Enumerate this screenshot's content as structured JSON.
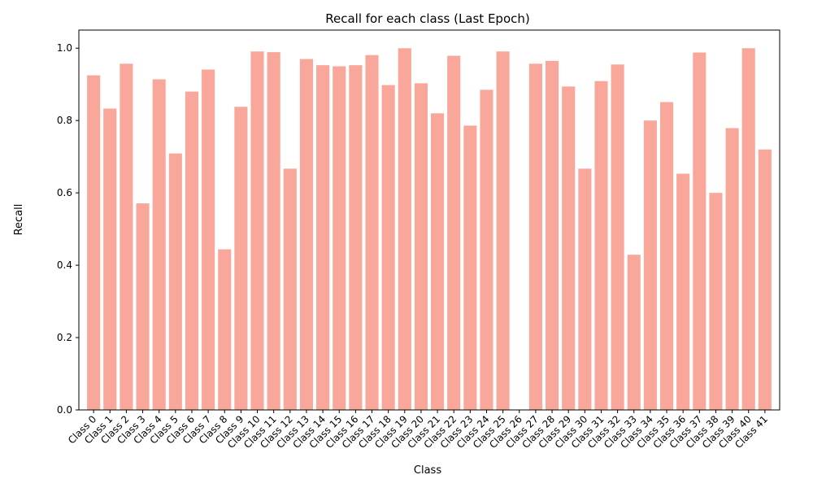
{
  "chart_data": {
    "type": "bar",
    "title": "Recall for each class (Last Epoch)",
    "xlabel": "Class",
    "ylabel": "Recall",
    "ylim": [
      0,
      1.05
    ],
    "yticks": [
      0.0,
      0.2,
      0.4,
      0.6,
      0.8,
      1.0
    ],
    "ytick_labels": [
      "0.0",
      "0.2",
      "0.4",
      "0.6",
      "0.8",
      "1.0"
    ],
    "grid": false,
    "bar_color": "#faa79b",
    "categories": [
      "Class 0",
      "Class 1",
      "Class 2",
      "Class 3",
      "Class 4",
      "Class 5",
      "Class 6",
      "Class 7",
      "Class 8",
      "Class 9",
      "Class 10",
      "Class 11",
      "Class 12",
      "Class 13",
      "Class 14",
      "Class 15",
      "Class 16",
      "Class 17",
      "Class 18",
      "Class 19",
      "Class 20",
      "Class 21",
      "Class 22",
      "Class 23",
      "Class 24",
      "Class 25",
      "Class 26",
      "Class 27",
      "Class 28",
      "Class 29",
      "Class 30",
      "Class 31",
      "Class 32",
      "Class 33",
      "Class 34",
      "Class 35",
      "Class 36",
      "Class 37",
      "Class 38",
      "Class 39",
      "Class 40",
      "Class 41"
    ],
    "values": [
      0.925,
      0.833,
      0.957,
      0.571,
      0.914,
      0.709,
      0.88,
      0.941,
      0.444,
      0.838,
      0.991,
      0.989,
      0.667,
      0.97,
      0.953,
      0.95,
      0.953,
      0.981,
      0.898,
      1.0,
      0.903,
      0.82,
      0.979,
      0.786,
      0.885,
      0.991,
      0.0,
      0.957,
      0.965,
      0.894,
      0.667,
      0.909,
      0.955,
      0.429,
      0.8,
      0.851,
      0.653,
      0.988,
      0.6,
      0.779,
      1.0,
      0.72
    ]
  }
}
